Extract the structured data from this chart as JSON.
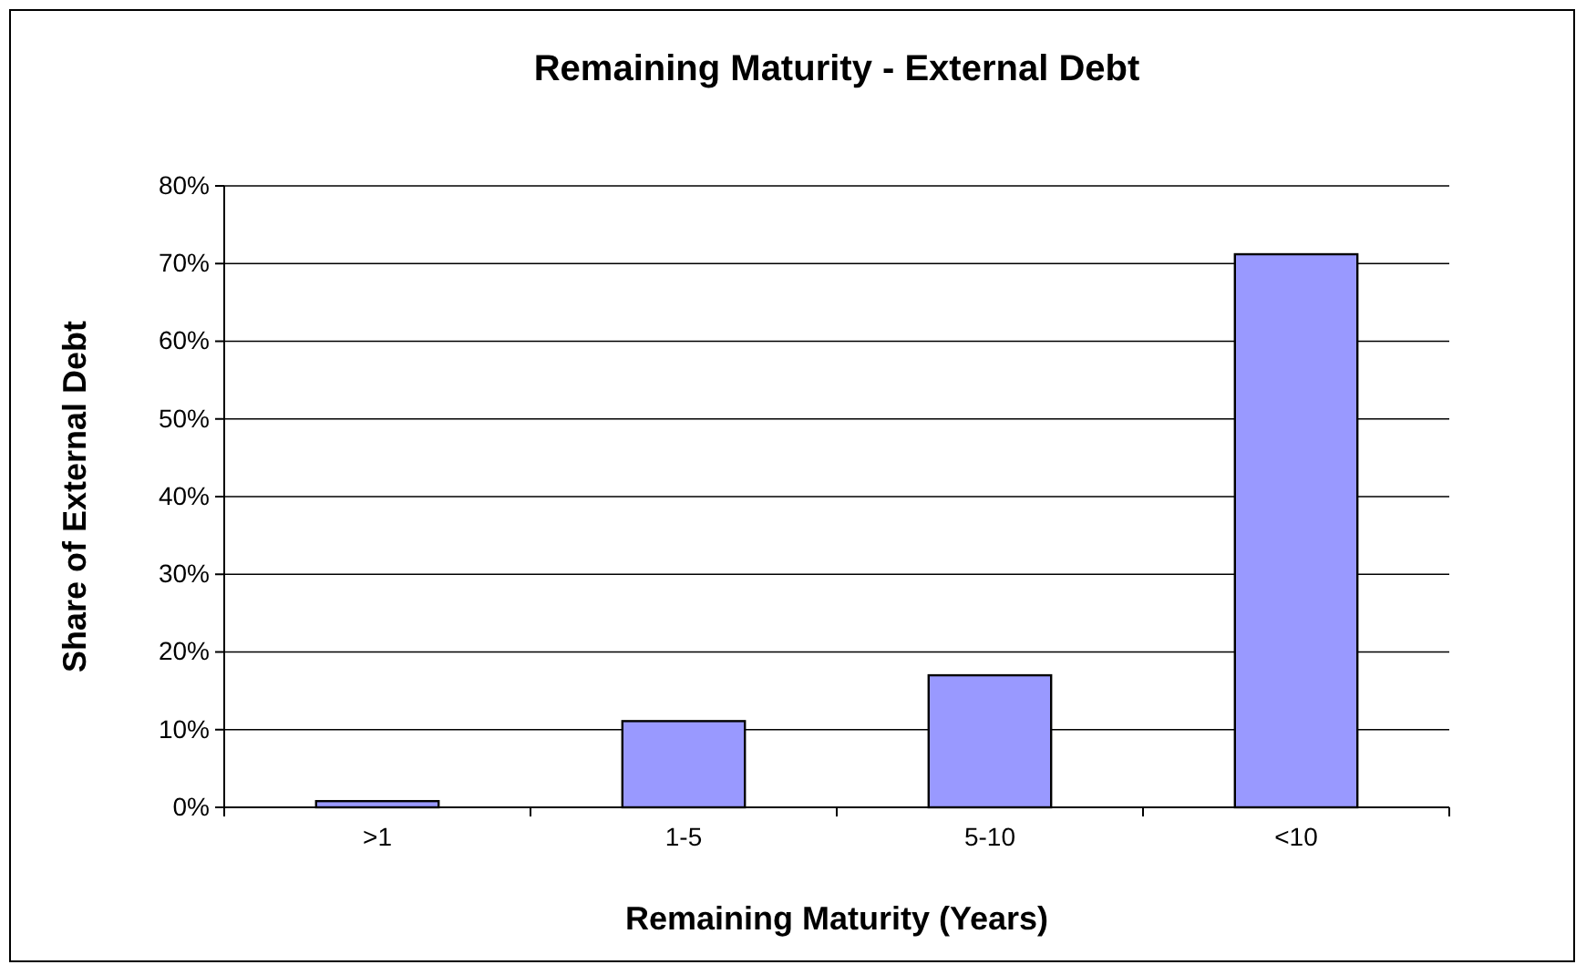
{
  "chart_data": {
    "type": "bar",
    "title": "Remaining Maturity - External Debt",
    "xlabel": "Remaining Maturity (Years)",
    "ylabel": "Share of External Debt",
    "categories": [
      ">1",
      "1-5",
      "5-10",
      "<10"
    ],
    "values": [
      0.8,
      11.1,
      17,
      71.2
    ],
    "color": "#9999ff",
    "ylim": [
      0,
      80
    ],
    "yticks": [
      {
        "value": 0,
        "label": "0%"
      },
      {
        "value": 10,
        "label": "10%"
      },
      {
        "value": 20,
        "label": "20%"
      },
      {
        "value": 30,
        "label": "30%"
      },
      {
        "value": 40,
        "label": "40%"
      },
      {
        "value": 50,
        "label": "50%"
      },
      {
        "value": 60,
        "label": "60%"
      },
      {
        "value": 70,
        "label": "70%"
      },
      {
        "value": 80,
        "label": "80%"
      }
    ],
    "grid": "y"
  }
}
